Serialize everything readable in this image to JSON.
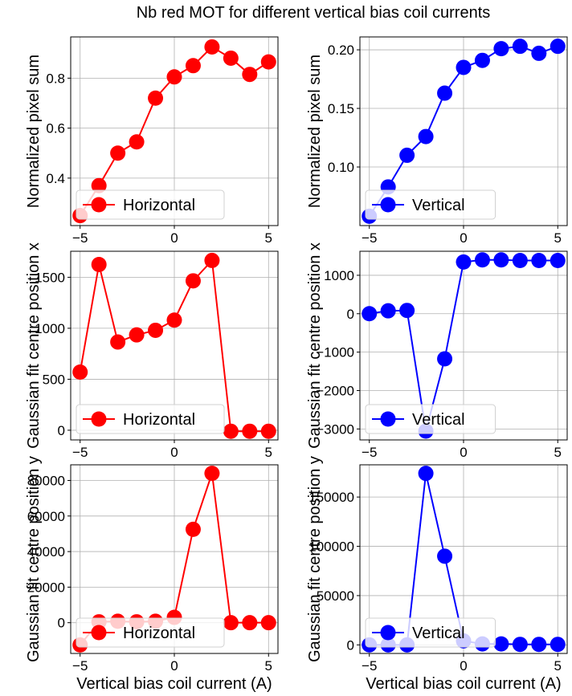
{
  "figure": {
    "title": "Nb red MOT for different vertical bias coil currents"
  },
  "chart_data": [
    {
      "type": "line",
      "row": 0,
      "col": 0,
      "x": [
        -5,
        -4,
        -3,
        -2,
        -1,
        0,
        1,
        2,
        3,
        4,
        5
      ],
      "series": [
        {
          "name": "Horizontal",
          "color": "#ff0000",
          "values": [
            0.25,
            0.37,
            0.5,
            0.545,
            0.72,
            0.805,
            0.85,
            0.925,
            0.88,
            0.815,
            0.865
          ]
        }
      ],
      "xlabel": "",
      "ylabel": "Normalized pixel sum",
      "xlim": [
        -5.5,
        5.5
      ],
      "ylim": [
        0.21,
        0.965
      ],
      "xticks": [
        -5,
        0,
        5
      ],
      "yticks": [
        0.4,
        0.6,
        0.8
      ],
      "ytick_labels": [
        "0.4",
        "0.6",
        "0.8"
      ],
      "grid": true,
      "legend": "lower-left"
    },
    {
      "type": "line",
      "row": 0,
      "col": 1,
      "x": [
        -5,
        -4,
        -3,
        -2,
        -1,
        0,
        1,
        2,
        3,
        4,
        5
      ],
      "series": [
        {
          "name": "Vertical",
          "color": "#0000ff",
          "values": [
            0.058,
            0.083,
            0.11,
            0.126,
            0.163,
            0.185,
            0.191,
            0.201,
            0.203,
            0.197,
            0.203
          ]
        }
      ],
      "xlabel": "",
      "ylabel": "Normalized pixel sum",
      "xlim": [
        -5.5,
        5.5
      ],
      "ylim": [
        0.05,
        0.211
      ],
      "xticks": [
        -5,
        0,
        5
      ],
      "yticks": [
        0.1,
        0.15,
        0.2
      ],
      "ytick_labels": [
        "0.10",
        "0.15",
        "0.20"
      ],
      "grid": true,
      "legend": "lower-left"
    },
    {
      "type": "line",
      "row": 1,
      "col": 0,
      "x": [
        -5,
        -4,
        -3,
        -2,
        -1,
        0,
        1,
        2,
        3,
        4,
        5
      ],
      "series": [
        {
          "name": "Horizontal",
          "color": "#ff0000",
          "values": [
            570,
            1625,
            865,
            935,
            980,
            1080,
            1465,
            1665,
            -10,
            -10,
            -10
          ]
        }
      ],
      "xlabel": "",
      "ylabel": "Gaussian fit centre position x",
      "xlim": [
        -5.5,
        5.5
      ],
      "ylim": [
        -95,
        1755
      ],
      "xticks": [
        -5,
        0,
        5
      ],
      "yticks": [
        0,
        500,
        1000,
        1500
      ],
      "ytick_labels": [
        "0",
        "500",
        "1000",
        "1500"
      ],
      "grid": true,
      "legend": "lower-left"
    },
    {
      "type": "line",
      "row": 1,
      "col": 1,
      "x": [
        -5,
        -4,
        -3,
        -2,
        -1,
        0,
        1,
        2,
        3,
        4,
        5
      ],
      "series": [
        {
          "name": "Vertical",
          "color": "#0000ff",
          "values": [
            0,
            75,
            85,
            -3055,
            -1175,
            1345,
            1400,
            1400,
            1385,
            1385,
            1385
          ]
        }
      ],
      "xlabel": "",
      "ylabel": "Gaussian fit centre position x",
      "xlim": [
        -5.5,
        5.5
      ],
      "ylim": [
        -3285,
        1625
      ],
      "xticks": [
        -5,
        0,
        5
      ],
      "yticks": [
        -3000,
        -2000,
        -1000,
        0,
        1000
      ],
      "ytick_labels": [
        "−3000",
        "−2000",
        "−1000",
        "0",
        "1000"
      ],
      "grid": true,
      "legend": "lower-left"
    },
    {
      "type": "line",
      "row": 2,
      "col": 0,
      "x": [
        -5,
        -4,
        -3,
        -2,
        -1,
        0,
        1,
        2,
        3,
        4,
        5
      ],
      "series": [
        {
          "name": "Horizontal",
          "color": "#ff0000",
          "values": [
            -12500,
            500,
            800,
            500,
            800,
            3000,
            52500,
            84000,
            0,
            0,
            0
          ]
        }
      ],
      "xlabel": "Vertical bias coil current (A)",
      "ylabel": "Gaussian fit centre position y",
      "xlim": [
        -5.5,
        5.5
      ],
      "ylim": [
        -17300,
        88800
      ],
      "xticks": [
        -5,
        0,
        5
      ],
      "yticks": [
        0,
        20000,
        40000,
        60000,
        80000
      ],
      "ytick_labels": [
        "0",
        "20000",
        "40000",
        "60000",
        "80000"
      ],
      "grid": true,
      "legend": "lower-left"
    },
    {
      "type": "line",
      "row": 2,
      "col": 1,
      "x": [
        -5,
        -4,
        -3,
        -2,
        -1,
        0,
        1,
        2,
        3,
        4,
        5
      ],
      "series": [
        {
          "name": "Vertical",
          "color": "#0000ff",
          "values": [
            0,
            0,
            0,
            174000,
            90000,
            4000,
            1000,
            1000,
            500,
            500,
            500
          ]
        }
      ],
      "xlabel": "Vertical bias coil current (A)",
      "ylabel": "Gaussian fit centre position y",
      "xlim": [
        -5.5,
        5.5
      ],
      "ylim": [
        -8700,
        182700
      ],
      "xticks": [
        -5,
        0,
        5
      ],
      "yticks": [
        0,
        50000,
        100000,
        150000
      ],
      "ytick_labels": [
        "0",
        "50000",
        "100000",
        "150000"
      ],
      "grid": true,
      "legend": "lower-left"
    }
  ]
}
